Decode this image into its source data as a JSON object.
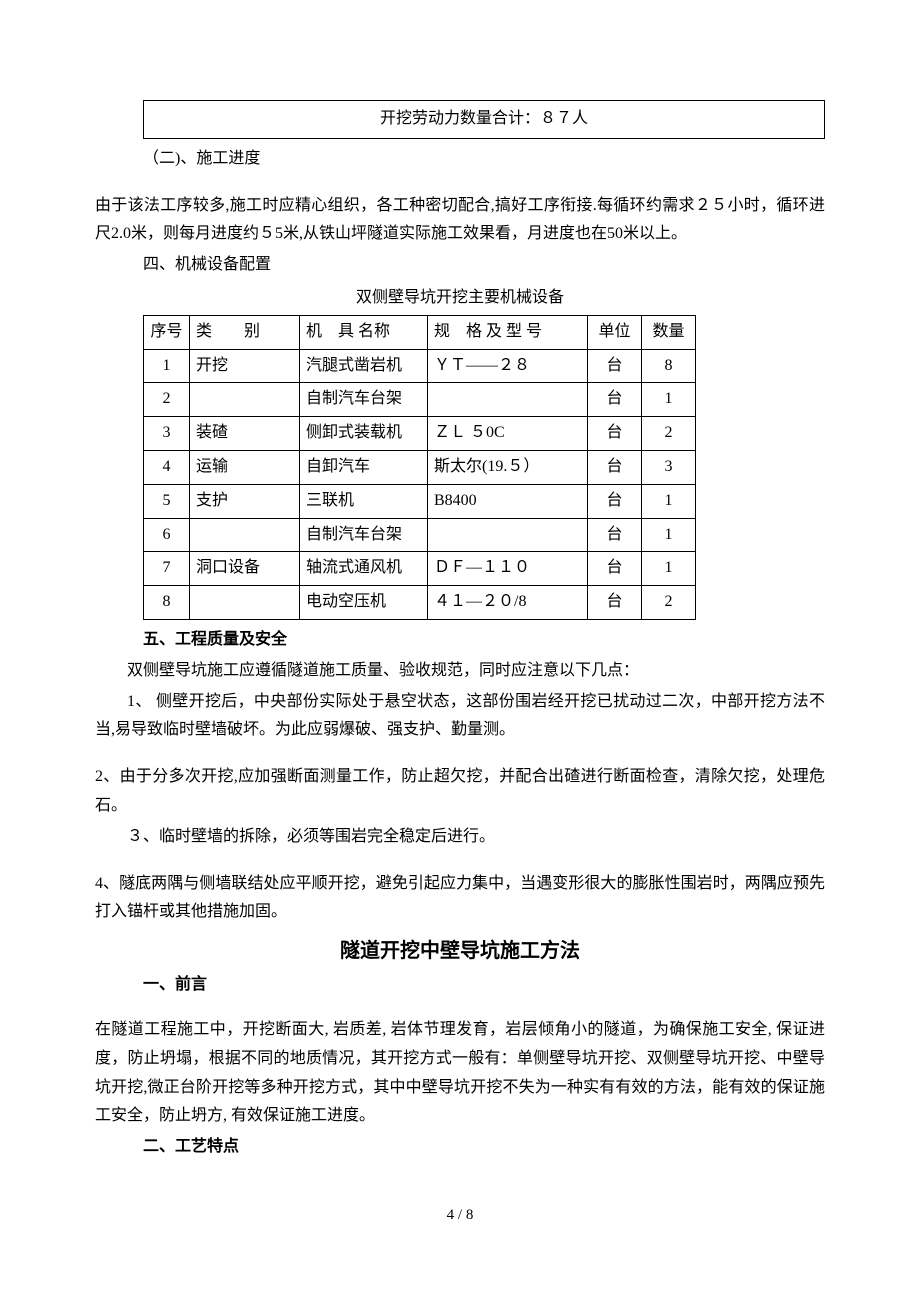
{
  "summary_box": "开挖劳动力数量合计：８７人",
  "section2_title": "（二)、施工进度",
  "section2_para": "由于该法工序较多,施工时应精心组织，各工种密切配合,搞好工序衔接.每循环约需求２５小时，循环进尺2.0米，则每月进度约５5米,从铁山坪隧道实际施工效果看，月进度也在50米以上。",
  "section4_title": "四、机械设备配置",
  "table_caption": "双侧壁导坑开挖主要机械设备",
  "table": {
    "headers": [
      "序号",
      "类　　别",
      "机　具 名称",
      "规　格 及 型 号",
      "单位",
      "数量"
    ],
    "rows": [
      [
        "1",
        "开挖",
        "汽腿式凿岩机",
        "ＹＴ——２８",
        "台",
        "8"
      ],
      [
        "2",
        "",
        "自制汽车台架",
        "",
        "台",
        "1"
      ],
      [
        "3",
        "装碴",
        "侧卸式装载机",
        "ＺＬ ５0C",
        "台",
        "2"
      ],
      [
        "4",
        "运输",
        "自卸汽车",
        "斯太尔(19.５）",
        "台",
        "3"
      ],
      [
        "5",
        "支护",
        "三联机",
        "B8400",
        "台",
        "1"
      ],
      [
        "6",
        "",
        "自制汽车台架",
        "",
        "台",
        "1"
      ],
      [
        "7",
        "洞口设备",
        "轴流式通风机",
        "ＤＦ—１１０",
        "台",
        "1"
      ],
      [
        "8",
        "",
        "电动空压机",
        "４１—２０/8",
        "台",
        "2"
      ]
    ]
  },
  "section5_title": "五、工程质量及安全",
  "section5_intro": "双侧壁导坑施工应遵循隧道施工质量、验收规范，同时应注意以下几点：",
  "section5_item1": "1、 侧壁开挖后，中央部份实际处于悬空状态，这部份围岩经开挖已扰动过二次，中部开挖方法不当,易导致临时壁墙破坏。为此应弱爆破、强支护、勤量测。",
  "section5_item2": "2、由于分多次开挖,应加强断面测量工作，防止超欠挖，并配合出碴进行断面检查，清除欠挖，处理危石。",
  "section5_item3": "３、临时壁墙的拆除，必须等围岩完全稳定后进行。",
  "section5_item4": "4、隧底两隅与侧墙联结处应平顺开挖，避免引起应力集中，当遇变形很大的膨胀性围岩时，两隅应预先打入锚杆或其他措施加固。",
  "title2": "隧道开挖中壁导坑施工方法",
  "sec_b1_title": "一、前言",
  "sec_b1_para": "在隧道工程施工中，开挖断面大, 岩质差, 岩体节理发育，岩层倾角小的隧道，为确保施工安全, 保证进度，防止坍塌，根据不同的地质情况，其开挖方式一般有：单侧壁导坑开挖、双侧壁导坑开挖、中壁导坑开挖,微正台阶开挖等多种开挖方式，其中中壁导坑开挖不失为一种实有有效的方法，能有效的保证施工安全，防止坍方, 有效保证施工进度。",
  "sec_b2_title": "二、工艺特点",
  "page_num": "4 / 8"
}
